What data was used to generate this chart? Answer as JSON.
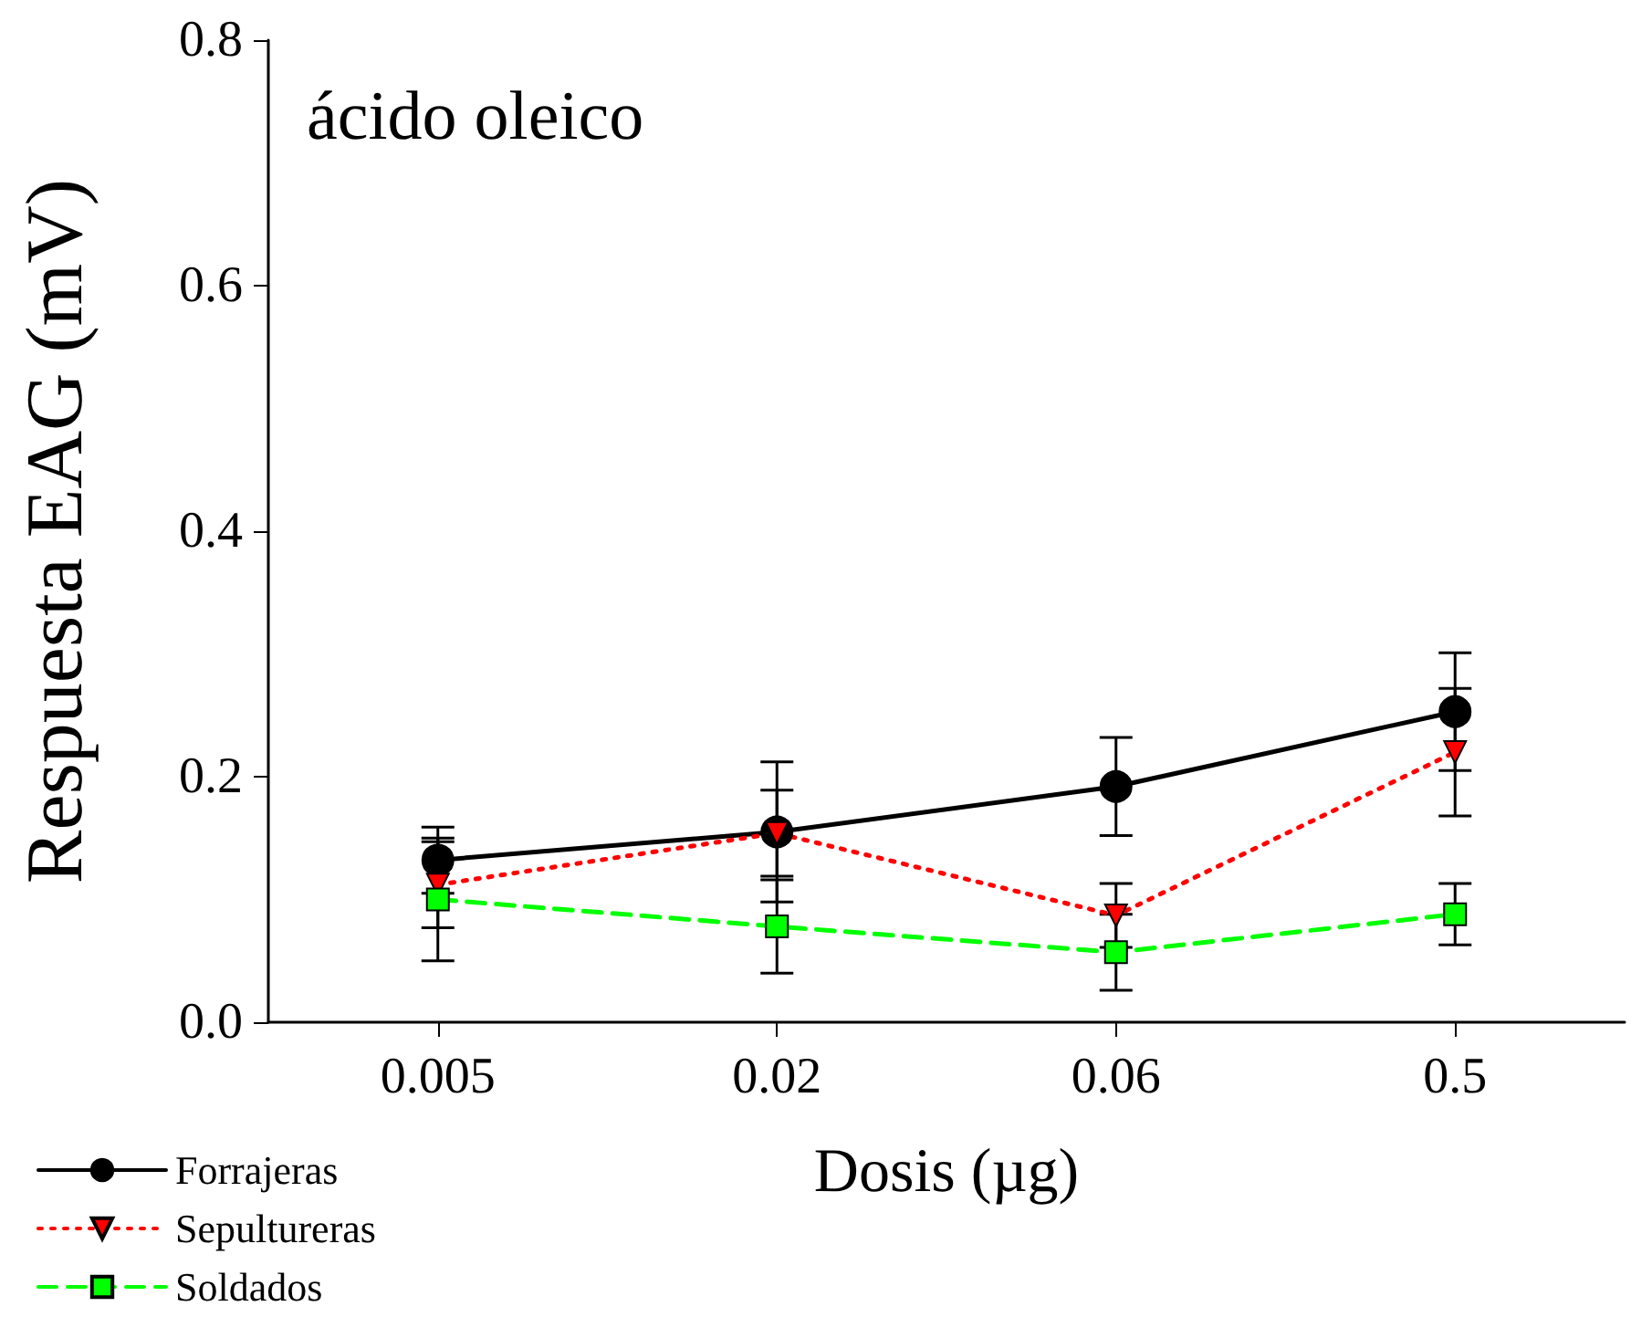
{
  "chart_data": {
    "type": "line",
    "annotations": [
      "ácido oleico"
    ],
    "xlabel": "Dosis (µg)",
    "ylabel": "Respuesta EAG (mV)",
    "categories": [
      "0.005",
      "0.02",
      "0.06",
      "0.5"
    ],
    "series": [
      {
        "name": "Forrajeras",
        "color": "#000000",
        "marker": "circle",
        "line_style": "solid",
        "values": [
          0.132,
          0.155,
          0.192,
          0.253
        ],
        "errors": [
          0.027,
          0.057,
          0.04,
          0.048
        ]
      },
      {
        "name": "Sepultureras",
        "color": "#ff0000",
        "marker": "triangle",
        "line_style": "dotted",
        "values": [
          0.112,
          0.154,
          0.087,
          0.22
        ],
        "errors": [
          0.035,
          0.035,
          0.026,
          0.052
        ]
      },
      {
        "name": "Soldados",
        "color": "#00ff00",
        "marker": "square",
        "line_style": "dashed",
        "values": [
          0.1,
          0.078,
          0.057,
          0.088
        ],
        "errors": [
          0.05,
          0.038,
          0.031,
          0.025
        ]
      }
    ],
    "ylim": [
      0,
      0.8
    ],
    "yticks": [
      {
        "value": 0,
        "label": "0.0"
      },
      {
        "value": 0.2,
        "label": "0.2"
      },
      {
        "value": 0.4,
        "label": "0.4"
      },
      {
        "value": 0.6,
        "label": "0.6"
      },
      {
        "value": 0.8,
        "label": "0.8"
      }
    ],
    "grid": false,
    "legend": "bottom left"
  }
}
